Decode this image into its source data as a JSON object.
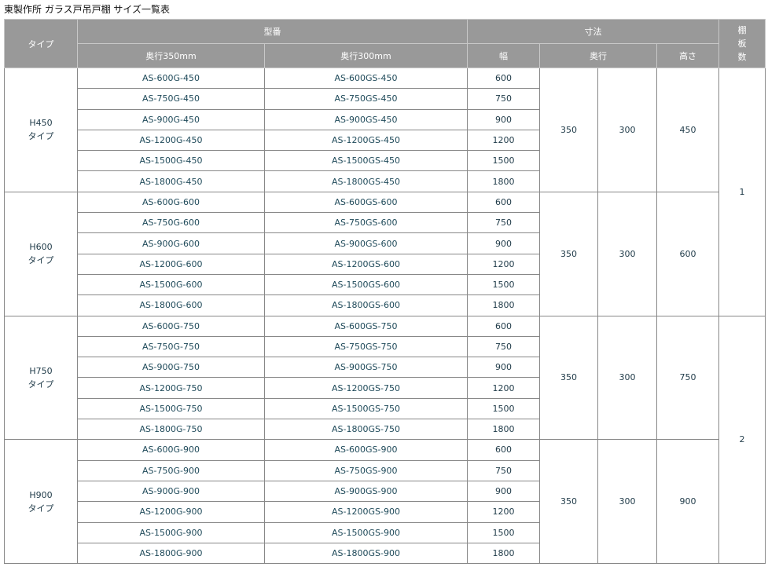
{
  "title": "東製作所  ガラス戸吊戸棚  サイズ一覧表",
  "header": {
    "type": "タイプ",
    "model": "型番",
    "depth350": "奥行350mm",
    "depth300": "奥行300mm",
    "dimensions": "寸法",
    "width": "幅",
    "depth": "奥行",
    "height": "高さ",
    "shelves": "棚板数"
  },
  "groups": [
    {
      "type": "H450",
      "suffix": "タイプ",
      "depth_a": "350",
      "depth_b": "300",
      "height": "450",
      "rows": [
        [
          "AS-600G-450",
          "AS-600GS-450",
          "600"
        ],
        [
          "AS-750G-450",
          "AS-750GS-450",
          "750"
        ],
        [
          "AS-900G-450",
          "AS-900GS-450",
          "900"
        ],
        [
          "AS-1200G-450",
          "AS-1200GS-450",
          "1200"
        ],
        [
          "AS-1500G-450",
          "AS-1500GS-450",
          "1500"
        ],
        [
          "AS-1800G-450",
          "AS-1800GS-450",
          "1800"
        ]
      ]
    },
    {
      "type": "H600",
      "suffix": "タイプ",
      "depth_a": "350",
      "depth_b": "300",
      "height": "600",
      "rows": [
        [
          "AS-600G-600",
          "AS-600GS-600",
          "600"
        ],
        [
          "AS-750G-600",
          "AS-750GS-600",
          "750"
        ],
        [
          "AS-900G-600",
          "AS-900GS-600",
          "900"
        ],
        [
          "AS-1200G-600",
          "AS-1200GS-600",
          "1200"
        ],
        [
          "AS-1500G-600",
          "AS-1500GS-600",
          "1500"
        ],
        [
          "AS-1800G-600",
          "AS-1800GS-600",
          "1800"
        ]
      ]
    },
    {
      "type": "H750",
      "suffix": "タイプ",
      "depth_a": "350",
      "depth_b": "300",
      "height": "750",
      "rows": [
        [
          "AS-600G-750",
          "AS-600GS-750",
          "600"
        ],
        [
          "AS-750G-750",
          "AS-750GS-750",
          "750"
        ],
        [
          "AS-900G-750",
          "AS-900GS-750",
          "900"
        ],
        [
          "AS-1200G-750",
          "AS-1200GS-750",
          "1200"
        ],
        [
          "AS-1500G-750",
          "AS-1500GS-750",
          "1500"
        ],
        [
          "AS-1800G-750",
          "AS-1800GS-750",
          "1800"
        ]
      ]
    },
    {
      "type": "H900",
      "suffix": "タイプ",
      "depth_a": "350",
      "depth_b": "300",
      "height": "900",
      "rows": [
        [
          "AS-600G-900",
          "AS-600GS-900",
          "600"
        ],
        [
          "AS-750G-900",
          "AS-750GS-900",
          "750"
        ],
        [
          "AS-900G-900",
          "AS-900GS-900",
          "900"
        ],
        [
          "AS-1200G-900",
          "AS-1200GS-900",
          "1200"
        ],
        [
          "AS-1500G-900",
          "AS-1500GS-900",
          "1500"
        ],
        [
          "AS-1800G-900",
          "AS-1800GS-900",
          "1800"
        ]
      ]
    }
  ],
  "shelf_counts": [
    "1",
    "2"
  ],
  "colors": {
    "header_bg": "#999999",
    "model_text": "#1f4a5a"
  }
}
